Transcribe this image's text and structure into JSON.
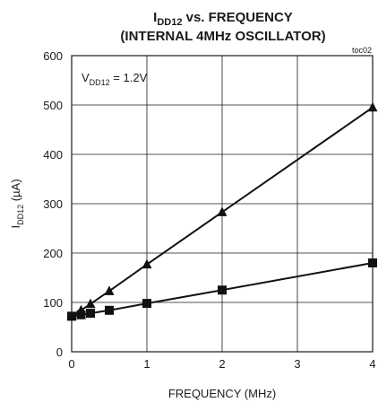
{
  "chart_data": {
    "type": "line",
    "title": {
      "line1_main": "I",
      "line1_sub": "DD12",
      "line1_rest": " vs. FREQUENCY",
      "line2": "(INTERNAL 4MHz OSCILLATOR)"
    },
    "code": "toc02",
    "annotation": {
      "main": "V",
      "sub": "DD12",
      "rest": " = 1.2V"
    },
    "xlabel": "FREQUENCY (MHz)",
    "ylabel": {
      "main": "I",
      "sub": "DD12",
      "rest": " (µA)"
    },
    "xlim": [
      0,
      4
    ],
    "ylim": [
      0,
      600
    ],
    "xticks": [
      "0",
      "1",
      "2",
      "3",
      "4"
    ],
    "yticks": [
      "0",
      "100",
      "200",
      "300",
      "400",
      "500",
      "600"
    ],
    "grid": true,
    "series": [
      {
        "marker": "triangle",
        "x": [
          0,
          0.125,
          0.25,
          0.5,
          1,
          2,
          4
        ],
        "y": [
          72,
          84,
          97,
          123,
          177,
          283,
          495
        ]
      },
      {
        "marker": "square",
        "x": [
          0,
          0.125,
          0.25,
          0.5,
          1,
          2,
          4
        ],
        "y": [
          72,
          75,
          78,
          84,
          98,
          125,
          180
        ]
      }
    ]
  }
}
